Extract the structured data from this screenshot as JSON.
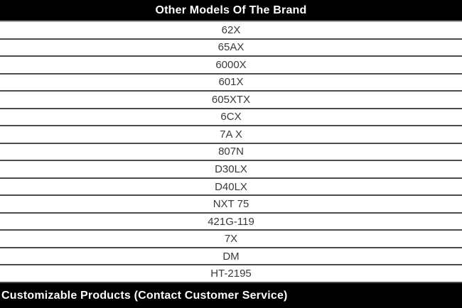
{
  "table": {
    "header": {
      "title": "Other Models Of The Brand"
    },
    "models": [
      "62X",
      "65AX",
      "6000X",
      "601X",
      "605XTX",
      "6CX",
      "7A X",
      "807N",
      "D30LX",
      "D40LX",
      "NXT 75",
      "421G-119",
      "7X",
      "DM",
      "HT-2195"
    ],
    "footer": {
      "title": "Customizable Products (Contact Customer Service)"
    }
  },
  "colors": {
    "bar_bg": "#000000",
    "bar_text": "#ffffff",
    "row_bg": "#ffffff",
    "row_text": "#3a3a3a",
    "row_border": "#4a4a4a",
    "header_underline": "#a0a0a0"
  }
}
